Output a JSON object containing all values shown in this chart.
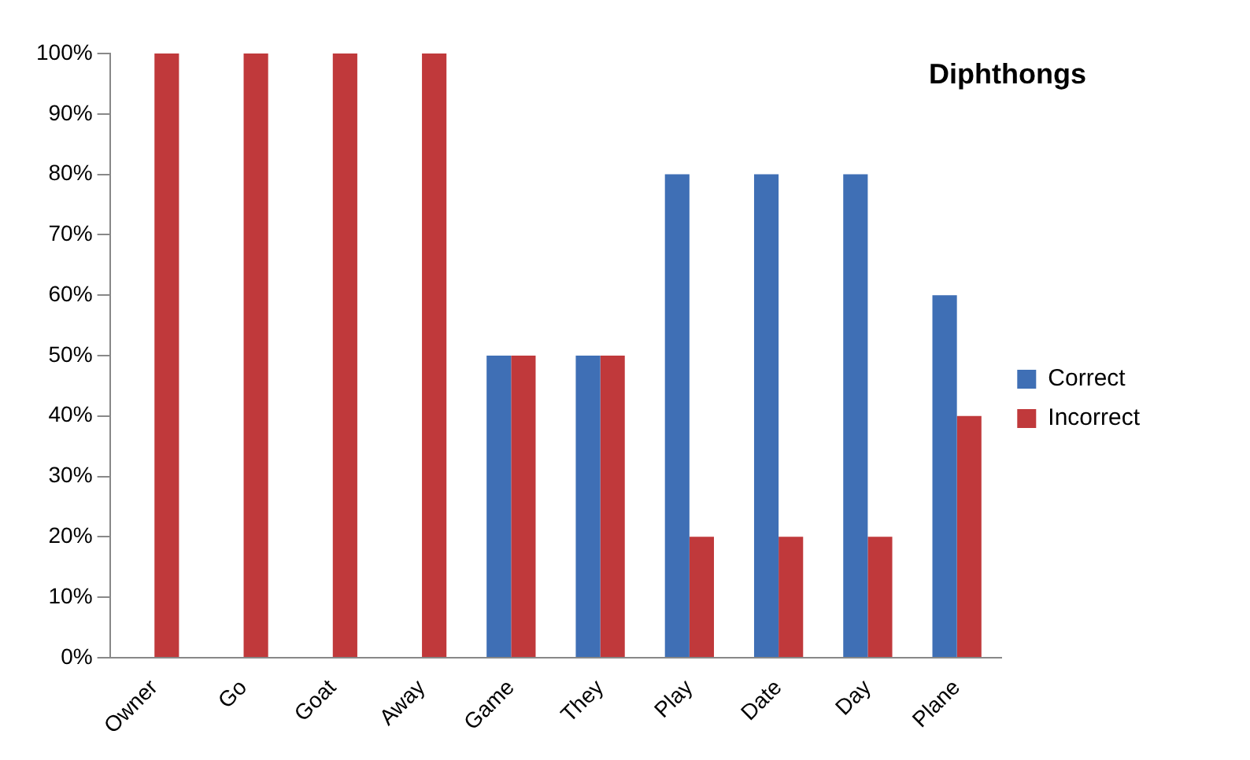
{
  "chart_data": {
    "type": "bar",
    "title": "Diphthongs",
    "categories": [
      "Owner",
      "Go",
      "Goat",
      "Away",
      "Game",
      "They",
      "Play",
      "Date",
      "Day",
      "Plane"
    ],
    "series": [
      {
        "name": "Correct",
        "color": "#3f6fb5",
        "values": [
          0,
          0,
          0,
          0,
          50,
          50,
          80,
          80,
          80,
          60
        ]
      },
      {
        "name": "Incorrect",
        "color": "#c0393b",
        "values": [
          100,
          100,
          100,
          100,
          50,
          50,
          20,
          20,
          20,
          40
        ]
      }
    ],
    "ylim": [
      0,
      100
    ],
    "yticks": [
      {
        "value": 0,
        "label": "0%"
      },
      {
        "value": 10,
        "label": "10%"
      },
      {
        "value": 20,
        "label": "20%"
      },
      {
        "value": 30,
        "label": "30%"
      },
      {
        "value": 40,
        "label": "40%"
      },
      {
        "value": 50,
        "label": "50%"
      },
      {
        "value": 60,
        "label": "60%"
      },
      {
        "value": 70,
        "label": "70%"
      },
      {
        "value": 80,
        "label": "80%"
      },
      {
        "value": 90,
        "label": "90%"
      },
      {
        "value": 100,
        "label": "100%"
      }
    ],
    "grid": false,
    "legend": "right"
  }
}
